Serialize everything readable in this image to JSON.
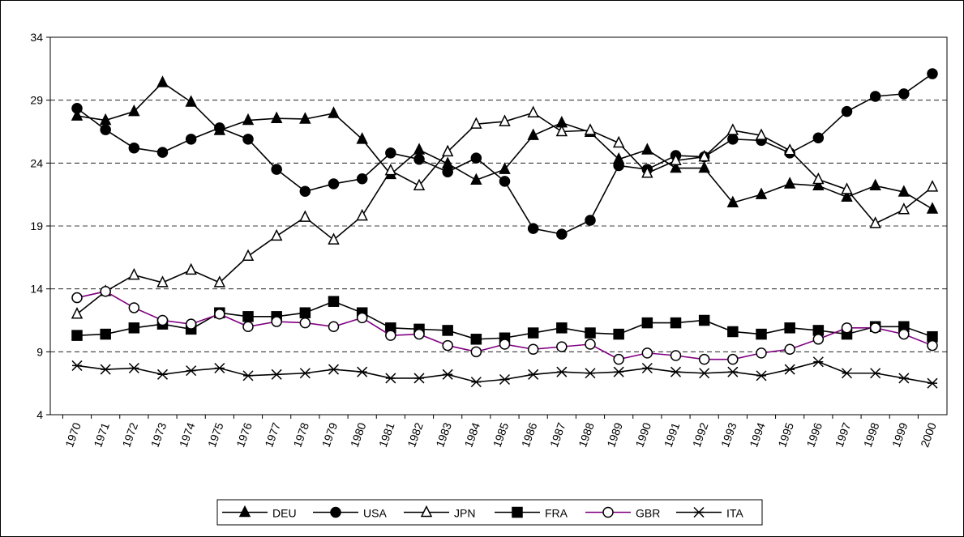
{
  "chart_data": {
    "type": "line",
    "categories": [
      "1970",
      "1971",
      "1972",
      "1973",
      "1974",
      "1975",
      "1976",
      "1977",
      "1978",
      "1979",
      "1980",
      "1981",
      "1982",
      "1983",
      "1984",
      "1985",
      "1986",
      "1987",
      "1988",
      "1989",
      "1990",
      "1991",
      "1992",
      "1993",
      "1994",
      "1995",
      "1996",
      "1997",
      "1998",
      "1999",
      "2000"
    ],
    "ylim": [
      4,
      34
    ],
    "yticks": [
      4,
      9,
      14,
      19,
      24,
      29,
      34
    ],
    "grid": true,
    "legend": "bottom",
    "series": [
      {
        "name": "DEU",
        "color": "#000000",
        "marker": "triangle-filled",
        "values": [
          27.75,
          27.4,
          28.1,
          30.4,
          28.85,
          26.6,
          27.4,
          27.55,
          27.5,
          27.95,
          25.9,
          23.1,
          25.05,
          23.95,
          22.65,
          23.5,
          26.2,
          27.2,
          26.45,
          24.3,
          25.05,
          23.6,
          23.6,
          20.85,
          21.5,
          22.35,
          22.2,
          21.3,
          22.2,
          21.7,
          20.35
        ]
      },
      {
        "name": "USA",
        "color": "#000000",
        "marker": "circle-filled",
        "values": [
          28.35,
          26.65,
          25.2,
          24.85,
          25.9,
          26.8,
          25.9,
          23.5,
          21.75,
          22.35,
          22.75,
          24.8,
          24.3,
          23.3,
          24.4,
          22.55,
          18.8,
          18.35,
          19.45,
          23.8,
          23.5,
          24.6,
          24.5,
          25.9,
          25.8,
          24.8,
          26.0,
          28.1,
          29.3,
          29.5,
          31.1
        ]
      },
      {
        "name": "JPN",
        "color": "#000000",
        "marker": "triangle-open",
        "values": [
          12.0,
          13.8,
          15.1,
          14.5,
          15.5,
          14.5,
          16.6,
          18.2,
          19.7,
          17.9,
          19.8,
          23.4,
          22.2,
          24.9,
          27.1,
          27.3,
          28.0,
          26.5,
          26.6,
          25.6,
          23.2,
          24.2,
          24.5,
          26.6,
          26.2,
          25.0,
          22.7,
          21.9,
          19.2,
          20.3,
          22.1
        ]
      },
      {
        "name": "FRA",
        "color": "#000000",
        "marker": "square-filled",
        "values": [
          10.3,
          10.4,
          10.9,
          11.2,
          10.8,
          12.1,
          11.8,
          11.8,
          12.1,
          13.0,
          12.1,
          10.9,
          10.8,
          10.7,
          10.0,
          10.1,
          10.5,
          10.9,
          10.5,
          10.4,
          11.3,
          11.3,
          11.5,
          10.6,
          10.4,
          10.9,
          10.7,
          10.4,
          11.0,
          11.0,
          10.2
        ]
      },
      {
        "name": "GBR",
        "color": "#800080",
        "marker": "circle-open",
        "values": [
          13.3,
          13.8,
          12.5,
          11.5,
          11.2,
          12.0,
          11.0,
          11.4,
          11.3,
          11.0,
          11.7,
          10.3,
          10.4,
          9.5,
          9.0,
          9.6,
          9.2,
          9.4,
          9.6,
          8.4,
          8.9,
          8.7,
          8.4,
          8.4,
          8.9,
          9.2,
          10.0,
          10.9,
          10.9,
          10.4,
          9.5
        ]
      },
      {
        "name": "ITA",
        "color": "#000000",
        "marker": "star",
        "values": [
          7.9,
          7.6,
          7.7,
          7.2,
          7.5,
          7.7,
          7.1,
          7.2,
          7.3,
          7.6,
          7.4,
          6.9,
          6.9,
          7.2,
          6.6,
          6.8,
          7.2,
          7.4,
          7.3,
          7.4,
          7.7,
          7.4,
          7.3,
          7.4,
          7.1,
          7.6,
          8.2,
          7.3,
          7.3,
          6.9,
          6.5
        ]
      }
    ]
  }
}
